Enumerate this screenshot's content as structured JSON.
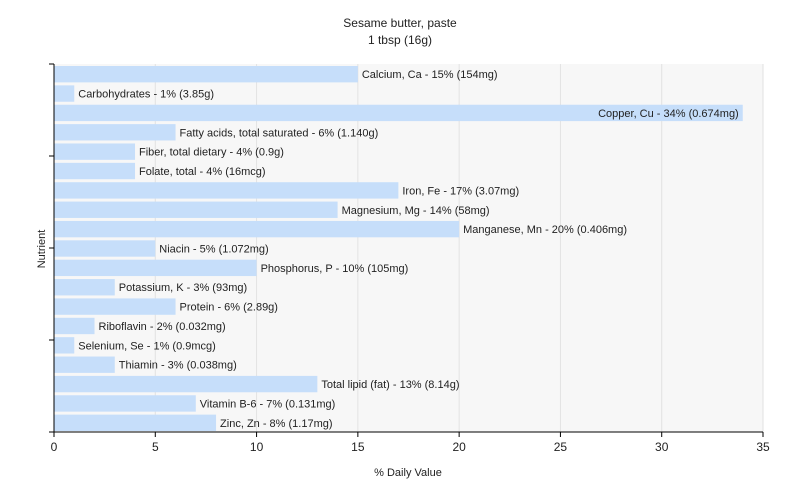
{
  "chart_data": {
    "type": "bar",
    "orientation": "horizontal",
    "title": "Sesame butter, paste",
    "subtitle": "1 tbsp (16g)",
    "xlabel": "% Daily Value",
    "ylabel": "Nutrient",
    "xlim": [
      0,
      35
    ],
    "xticks": [
      0,
      5,
      10,
      15,
      20,
      25,
      30,
      35
    ],
    "grid": true,
    "legend": "none",
    "bar_color": "#c6defa",
    "plot_background": "#f7f7f7",
    "categories": [
      "Calcium, Ca",
      "Carbohydrates",
      "Copper, Cu",
      "Fatty acids, total saturated",
      "Fiber, total dietary",
      "Folate, total",
      "Iron, Fe",
      "Magnesium, Mg",
      "Manganese, Mn",
      "Niacin",
      "Phosphorus, P",
      "Potassium, K",
      "Protein",
      "Riboflavin",
      "Selenium, Se",
      "Thiamin",
      "Total lipid (fat)",
      "Vitamin B-6",
      "Zinc, Zn"
    ],
    "values": [
      15,
      1,
      34,
      6,
      4,
      4,
      17,
      14,
      20,
      5,
      10,
      3,
      6,
      2,
      1,
      3,
      13,
      7,
      8
    ],
    "labels": [
      "Calcium, Ca - 15% (154mg)",
      "Carbohydrates - 1% (3.85g)",
      "Copper, Cu - 34% (0.674mg)",
      "Fatty acids, total saturated - 6% (1.140g)",
      "Fiber, total dietary - 4% (0.9g)",
      "Folate, total - 4% (16mcg)",
      "Iron, Fe - 17% (3.07mg)",
      "Magnesium, Mg - 14% (58mg)",
      "Manganese, Mn - 20% (0.406mg)",
      "Niacin - 5% (1.072mg)",
      "Phosphorus, P - 10% (105mg)",
      "Potassium, K - 3% (93mg)",
      "Protein - 6% (2.89g)",
      "Riboflavin - 2% (0.032mg)",
      "Selenium, Se - 1% (0.9mcg)",
      "Thiamin - 3% (0.038mg)",
      "Total lipid (fat) - 13% (8.14g)",
      "Vitamin B-6 - 7% (0.131mg)",
      "Zinc, Zn - 8% (1.17mg)"
    ]
  }
}
